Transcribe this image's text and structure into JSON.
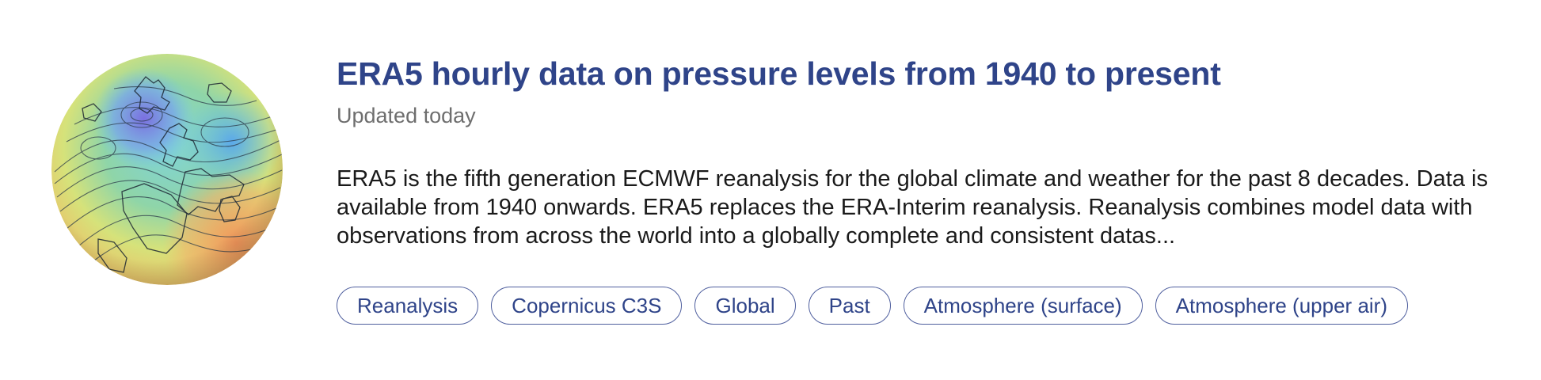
{
  "dataset": {
    "thumbnail_icon": "globe-pressure-map-icon",
    "title": "ERA5 hourly data on pressure levels from 1940 to present",
    "updated": "Updated today",
    "description": "ERA5 is the fifth generation ECMWF reanalysis for the global climate and weather for the past 8 decades. Data is available from 1940 onwards. ERA5 replaces the ERA-Interim reanalysis. Reanalysis combines model data with observations from across the world into a globally complete and consistent datas...",
    "tags": [
      "Reanalysis",
      "Copernicus C3S",
      "Global",
      "Past",
      "Atmosphere (surface)",
      "Atmosphere (upper air)"
    ]
  },
  "colors": {
    "title": "#2f4489",
    "tag_border": "#4f5f9e",
    "muted_text": "#6e6e6e"
  }
}
